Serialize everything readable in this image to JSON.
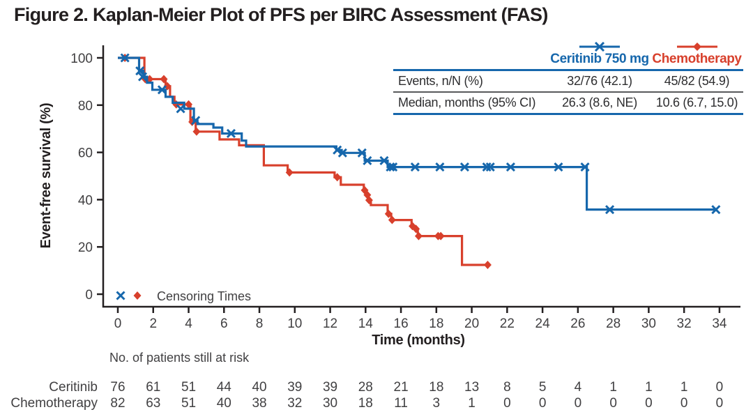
{
  "title": "Figure 2. Kaplan-Meier Plot of PFS per BIRC Assessment (FAS)",
  "colors": {
    "ceritinib_blue": "#1667ac",
    "chemotherapy_red": "#d8402c",
    "axis_black": "#231f20",
    "tick_gray": "#414042",
    "table_mid_rule_gray": "#58595b"
  },
  "stats_table": {
    "col_headers": [
      "Ceritinib 750 mg",
      "Chemotherapy"
    ],
    "rows": [
      {
        "label": "Events, n/N (%)",
        "ceritinib": "32/76 (42.1)",
        "chemo": "45/82 (54.9)"
      },
      {
        "label": "Median, months (95% CI)",
        "ceritinib": "26.3 (8.6, NE)",
        "chemo": "10.6 (6.7, 15.0)"
      }
    ]
  },
  "censoring_legend_label": "Censoring Times",
  "at_risk": {
    "header": "No. of patients still at risk",
    "rows": [
      {
        "label": "Ceritinib",
        "counts": [
          76,
          61,
          51,
          44,
          40,
          39,
          39,
          28,
          21,
          18,
          13,
          8,
          5,
          4,
          1,
          1,
          1,
          0
        ]
      },
      {
        "label": "Chemotherapy",
        "counts": [
          82,
          63,
          51,
          40,
          38,
          32,
          30,
          18,
          11,
          3,
          1,
          0,
          0,
          0,
          0,
          0,
          0,
          0
        ]
      }
    ]
  },
  "chart_data": {
    "type": "line",
    "subtype": "kaplan-meier-step",
    "title": "Kaplan-Meier Plot of PFS per BIRC Assessment (FAS)",
    "xlabel": "Time (months)",
    "ylabel": "Event-free survival (%)",
    "xlim": [
      0,
      34.5
    ],
    "ylim": [
      0,
      100
    ],
    "xticks": [
      0,
      2,
      4,
      6,
      8,
      10,
      12,
      14,
      16,
      18,
      20,
      22,
      24,
      26,
      28,
      30,
      32,
      34
    ],
    "yticks": [
      0,
      20,
      40,
      60,
      80,
      100
    ],
    "grid": false,
    "legend_position": "top-right-table",
    "series": [
      {
        "name": "Ceritinib 750 mg",
        "color": "#1667ac",
        "marker": "x",
        "start": [
          0,
          100
        ],
        "end_time": 33.8,
        "steps": [
          [
            1.2,
            94.5
          ],
          [
            1.45,
            92
          ],
          [
            1.65,
            89.5
          ],
          [
            1.95,
            86.5
          ],
          [
            2.7,
            83.5
          ],
          [
            3.1,
            81
          ],
          [
            3.75,
            78.5
          ],
          [
            4.3,
            73.5
          ],
          [
            4.5,
            72
          ],
          [
            5.4,
            70.5
          ],
          [
            5.9,
            68
          ],
          [
            7.0,
            65
          ],
          [
            7.25,
            62.5
          ],
          [
            12.35,
            61
          ],
          [
            12.65,
            59.8
          ],
          [
            13.95,
            56.5
          ],
          [
            15.25,
            53.8
          ],
          [
            26.5,
            35.8
          ]
        ],
        "censors": [
          [
            0.4,
            100
          ],
          [
            1.25,
            94.5
          ],
          [
            1.4,
            92
          ],
          [
            2.5,
            86.5
          ],
          [
            3.55,
            78.5
          ],
          [
            4.4,
            73.5
          ],
          [
            6.4,
            68
          ],
          [
            12.4,
            61
          ],
          [
            12.7,
            59.8
          ],
          [
            13.8,
            59.8
          ],
          [
            14.1,
            56.5
          ],
          [
            15.05,
            56.5
          ],
          [
            15.4,
            53.8
          ],
          [
            15.55,
            53.8
          ],
          [
            16.8,
            53.8
          ],
          [
            18.2,
            53.8
          ],
          [
            19.6,
            53.8
          ],
          [
            20.85,
            53.8
          ],
          [
            21.05,
            53.8
          ],
          [
            22.2,
            53.8
          ],
          [
            24.9,
            53.8
          ],
          [
            26.4,
            53.8
          ],
          [
            27.8,
            35.8
          ],
          [
            33.8,
            35.8
          ]
        ]
      },
      {
        "name": "Chemotherapy",
        "color": "#d8402c",
        "marker": "diamond",
        "start": [
          0,
          100
        ],
        "end_time": 20.9,
        "steps": [
          [
            1.5,
            91
          ],
          [
            2.7,
            88
          ],
          [
            2.95,
            83.5
          ],
          [
            3.2,
            80.3
          ],
          [
            4.1,
            72.9
          ],
          [
            4.4,
            68.8
          ],
          [
            5.75,
            65.5
          ],
          [
            6.85,
            63
          ],
          [
            8.25,
            54.5
          ],
          [
            9.6,
            51.5
          ],
          [
            12.25,
            49.5
          ],
          [
            12.6,
            46.3
          ],
          [
            13.9,
            44
          ],
          [
            14.05,
            42
          ],
          [
            14.15,
            39.8
          ],
          [
            14.3,
            37.7
          ],
          [
            15.25,
            34
          ],
          [
            15.45,
            31.4
          ],
          [
            16.6,
            28.8
          ],
          [
            16.8,
            27.6
          ],
          [
            16.95,
            24.6
          ],
          [
            19.45,
            12.4
          ]
        ],
        "censors": [
          [
            0.4,
            100
          ],
          [
            1.55,
            91
          ],
          [
            1.8,
            91
          ],
          [
            2.6,
            91
          ],
          [
            2.8,
            88
          ],
          [
            3.3,
            80.3
          ],
          [
            4.0,
            80.3
          ],
          [
            4.2,
            72.9
          ],
          [
            4.45,
            68.8
          ],
          [
            9.7,
            51.5
          ],
          [
            12.4,
            49.5
          ],
          [
            13.95,
            44
          ],
          [
            14.1,
            42
          ],
          [
            14.2,
            39.8
          ],
          [
            15.3,
            34
          ],
          [
            15.5,
            31.4
          ],
          [
            16.65,
            28.8
          ],
          [
            16.85,
            27.6
          ],
          [
            17.0,
            24.6
          ],
          [
            18.1,
            24.6
          ],
          [
            18.25,
            24.6
          ],
          [
            20.9,
            12.4
          ]
        ]
      }
    ]
  }
}
